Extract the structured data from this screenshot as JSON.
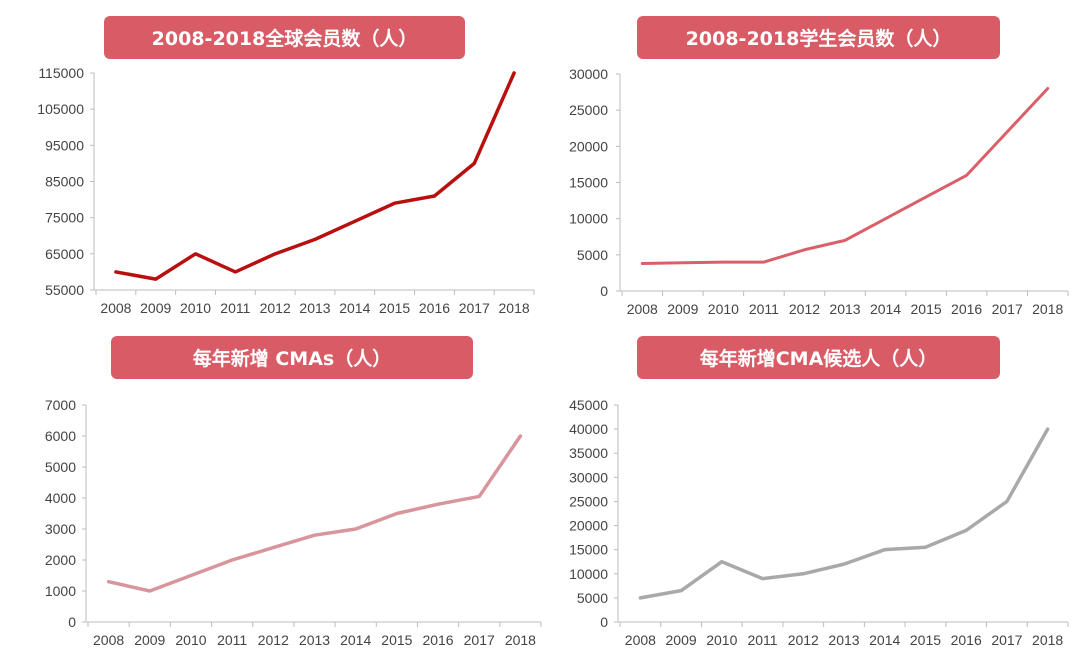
{
  "chart_data": [
    {
      "type": "line",
      "title": "2008-2018全球会员数（人）",
      "color": "#b80f0f",
      "categories": [
        "2008",
        "2009",
        "2010",
        "2011",
        "2012",
        "2013",
        "2014",
        "2015",
        "2016",
        "2017",
        "2018"
      ],
      "values": [
        60000,
        58000,
        65000,
        60000,
        65000,
        69000,
        74000,
        79000,
        81000,
        90000,
        115000
      ],
      "ylim": [
        55000,
        115000
      ],
      "yticks": [
        55000,
        65000,
        75000,
        85000,
        95000,
        105000,
        115000
      ]
    },
    {
      "type": "line",
      "title": "2008-2018学生会员数（人）",
      "color": "#d9606a",
      "categories": [
        "2008",
        "2009",
        "2010",
        "2011",
        "2012",
        "2013",
        "2014",
        "2015",
        "2016",
        "2017",
        "2018"
      ],
      "values": [
        3800,
        3900,
        4000,
        4000,
        5700,
        7000,
        10000,
        13000,
        16000,
        22000,
        28000
      ],
      "ylim": [
        0,
        30000
      ],
      "yticks": [
        0,
        5000,
        10000,
        15000,
        20000,
        25000,
        30000
      ]
    },
    {
      "type": "line",
      "title": "每年新增 CMAs（人）",
      "color": "#d8959b",
      "categories": [
        "2008",
        "2009",
        "2010",
        "2011",
        "2012",
        "2013",
        "2014",
        "2015",
        "2016",
        "2017",
        "2018"
      ],
      "values": [
        1300,
        1000,
        1500,
        2000,
        2400,
        2800,
        3000,
        3500,
        3800,
        4050,
        6000
      ],
      "ylim": [
        0,
        7000
      ],
      "yticks": [
        0,
        1000,
        2000,
        3000,
        4000,
        5000,
        6000,
        7000
      ]
    },
    {
      "type": "line",
      "title": "每年新增CMA候选人（人）",
      "color": "#a9a9ab",
      "categories": [
        "2008",
        "2009",
        "2010",
        "2011",
        "2012",
        "2013",
        "2014",
        "2015",
        "2016",
        "2017",
        "2018"
      ],
      "values": [
        5000,
        6500,
        12500,
        9000,
        10000,
        12000,
        15000,
        15500,
        19000,
        25000,
        40000
      ],
      "ylim": [
        0,
        45000
      ],
      "yticks": [
        0,
        5000,
        10000,
        15000,
        20000,
        25000,
        30000,
        35000,
        40000,
        45000
      ]
    }
  ]
}
